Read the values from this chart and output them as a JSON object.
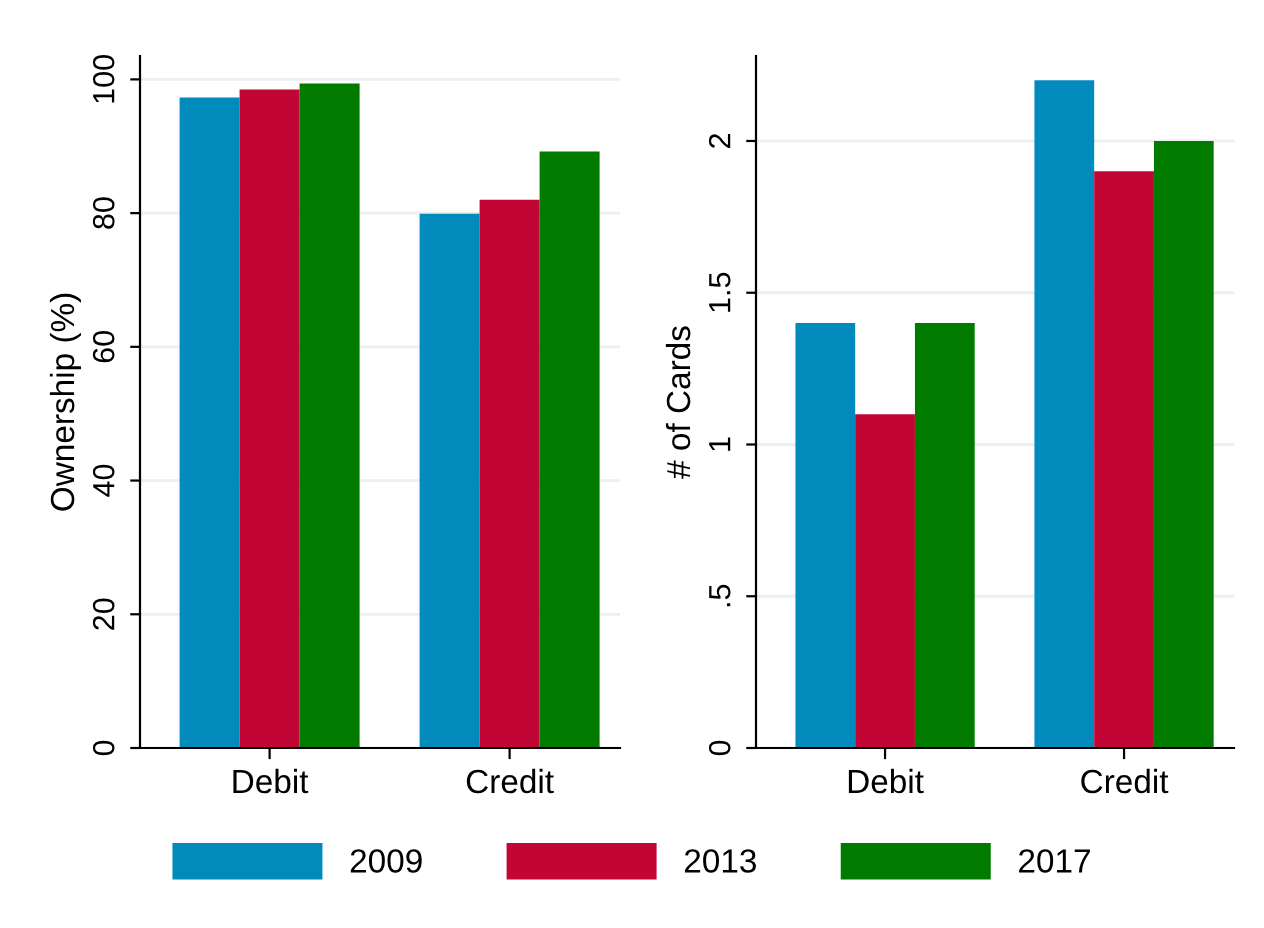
{
  "chart_data": [
    {
      "type": "bar",
      "categories": [
        "Debit",
        "Credit"
      ],
      "ylabel": "Ownership (%)",
      "ylim": [
        0,
        103.5
      ],
      "yticks": [
        0,
        20,
        40,
        60,
        80,
        100
      ],
      "grid": "y",
      "legend": "bottom",
      "series": [
        {
          "name": "2009",
          "color": "#008bbc",
          "values": [
            97.3,
            79.9
          ]
        },
        {
          "name": "2013",
          "color": "#c10534",
          "values": [
            98.5,
            82
          ]
        },
        {
          "name": "2017",
          "color": "#007b00",
          "values": [
            99.4,
            89.2
          ]
        }
      ]
    },
    {
      "type": "bar",
      "categories": [
        "Debit",
        "Credit"
      ],
      "ylabel": "# of Cards",
      "ylim": [
        0,
        2.28
      ],
      "yticks": [
        0,
        {
          "value": 0.5,
          "label": ".5"
        },
        1,
        1.5,
        2
      ],
      "grid": "y",
      "series": [
        {
          "name": "2009",
          "color": "#008bbc",
          "values": [
            1.4,
            2.2
          ]
        },
        {
          "name": "2013",
          "color": "#c10534",
          "values": [
            1.1,
            1.9
          ]
        },
        {
          "name": "2017",
          "color": "#007b00",
          "values": [
            1.4,
            2.0
          ]
        }
      ]
    }
  ]
}
